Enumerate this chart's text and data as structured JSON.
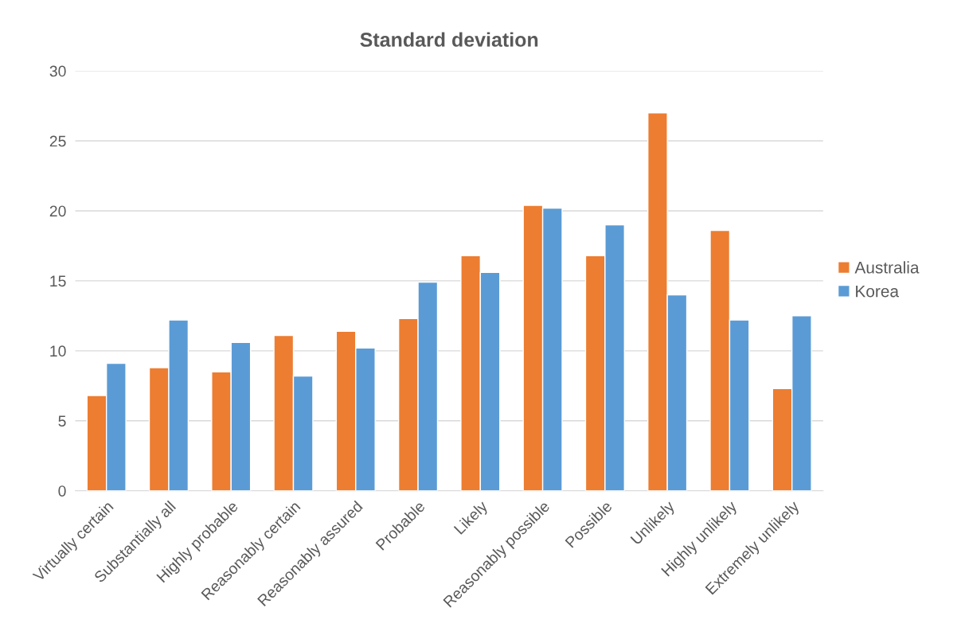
{
  "chart_data": {
    "type": "bar",
    "title": "Standard deviation",
    "categories": [
      "Virtually certain",
      "Substantially all",
      "Highly probable",
      "Reasonably certain",
      "Reasonably assured",
      "Probable",
      "Likely",
      "Reasonably possible",
      "Possible",
      "Unlikely",
      "Highly unlikely",
      "Extremely unlikely"
    ],
    "series": [
      {
        "name": "Australia",
        "color": "#ed7d31",
        "values": [
          6.8,
          8.8,
          8.5,
          11.1,
          11.4,
          12.3,
          16.8,
          20.4,
          16.8,
          27.0,
          18.6,
          7.3
        ]
      },
      {
        "name": "Korea",
        "color": "#5b9bd5",
        "values": [
          9.1,
          12.2,
          10.6,
          8.2,
          10.2,
          14.9,
          15.6,
          20.2,
          19.0,
          14.0,
          12.2,
          12.5
        ]
      }
    ],
    "ylim": [
      0,
      30
    ],
    "yticks": [
      0,
      5,
      10,
      15,
      20,
      25,
      30
    ],
    "grid": "y",
    "legend": "right"
  }
}
